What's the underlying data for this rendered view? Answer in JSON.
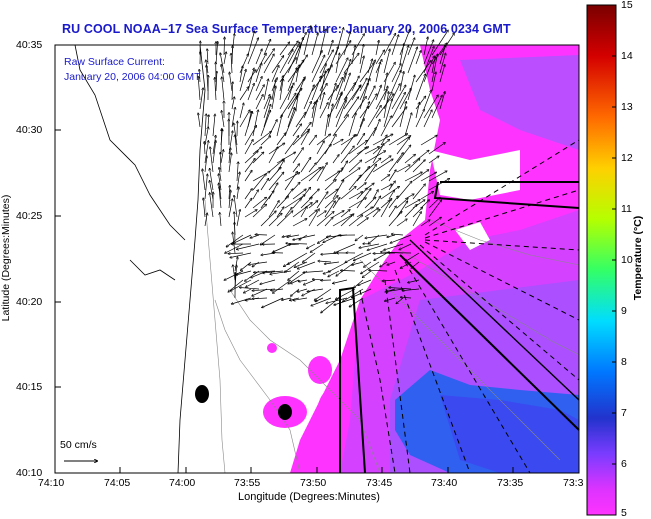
{
  "title": "RU COOL  NOAA–17  Sea Surface Temperature:  January 20, 2006 0234 GMT",
  "annotation": {
    "line1": "Raw Surface Current:",
    "line2": "January 20, 2006 04:00 GMT"
  },
  "scale_label": "50 cm/s",
  "x_axis": {
    "label": "Longitude (Degrees:Minutes)",
    "ticks": [
      "74:10",
      "74:05",
      "74:00",
      "73:55",
      "73:50",
      "73:45",
      "73:40",
      "73:35",
      "73:3"
    ]
  },
  "y_axis": {
    "label": "Latitude (Degrees:Minutes)",
    "ticks": [
      "40:35",
      "40:30",
      "40:25",
      "40:20",
      "40:15",
      "40:10"
    ]
  },
  "colorbar": {
    "label": "Temperature (°C)",
    "ticks": [
      "15",
      "14",
      "13",
      "12",
      "11",
      "10",
      "9",
      "8",
      "7",
      "6",
      "5"
    ],
    "min": 5,
    "max": 15
  },
  "colors": {
    "title": "#1a1acc",
    "sst_warm": "#ff33ff",
    "sst_mid": "#aa44ff",
    "sst_cold": "#2f60f0"
  }
}
